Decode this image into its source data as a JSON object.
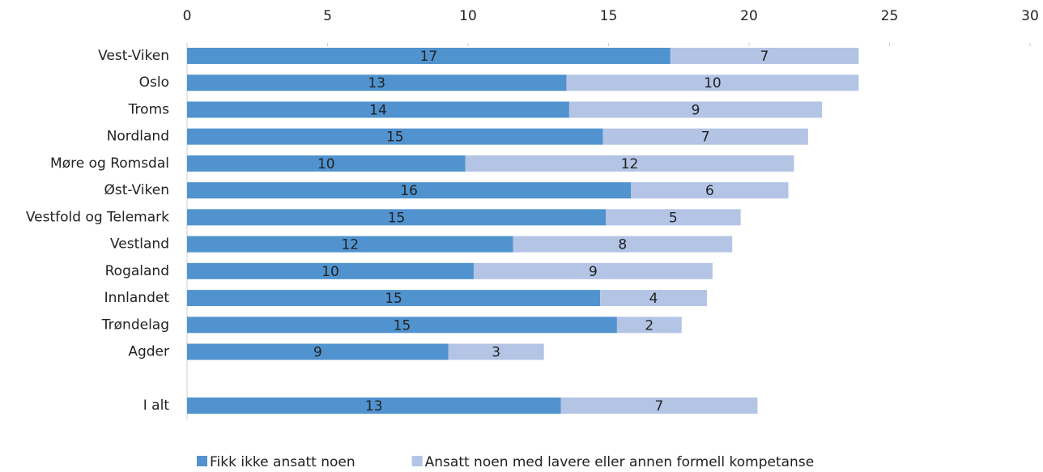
{
  "chart_data": {
    "type": "stacked-bar-horizontal",
    "categories": [
      "Vest-Viken",
      "Oslo",
      "Troms",
      "Nordland",
      "Møre og Romsdal",
      "Øst-Viken",
      "Vestfold og Telemark",
      "Vestland",
      "Rogaland",
      "Innlandet",
      "Trøndelag",
      "Agder",
      null,
      "I alt"
    ],
    "series": [
      {
        "name": "Fikk ikke ansatt noen",
        "color": "#5093cf",
        "values": [
          17.2,
          13.5,
          13.6,
          14.8,
          9.9,
          15.8,
          14.9,
          11.6,
          10.2,
          14.7,
          15.3,
          9.3,
          null,
          13.3
        ],
        "value_labels": [
          "17",
          "13",
          "14",
          "15",
          "10",
          "16",
          "15",
          "12",
          "10",
          "15",
          "15",
          "9",
          null,
          "13"
        ]
      },
      {
        "name": "Ansatt noen med lavere eller annen formell kompetanse",
        "color": "#b3c4e5",
        "values": [
          6.7,
          10.4,
          9.0,
          7.3,
          11.7,
          5.6,
          4.8,
          7.8,
          8.5,
          3.8,
          2.3,
          3.4,
          null,
          7.0
        ],
        "value_labels": [
          "7",
          "10",
          "9",
          "7",
          "12",
          "6",
          "5",
          "8",
          "9",
          "4",
          "2",
          "3",
          null,
          "7"
        ]
      }
    ],
    "xlim": [
      0,
      30
    ],
    "xticks": [
      0,
      5,
      10,
      15,
      20,
      25,
      30
    ],
    "legend": "bottom"
  }
}
